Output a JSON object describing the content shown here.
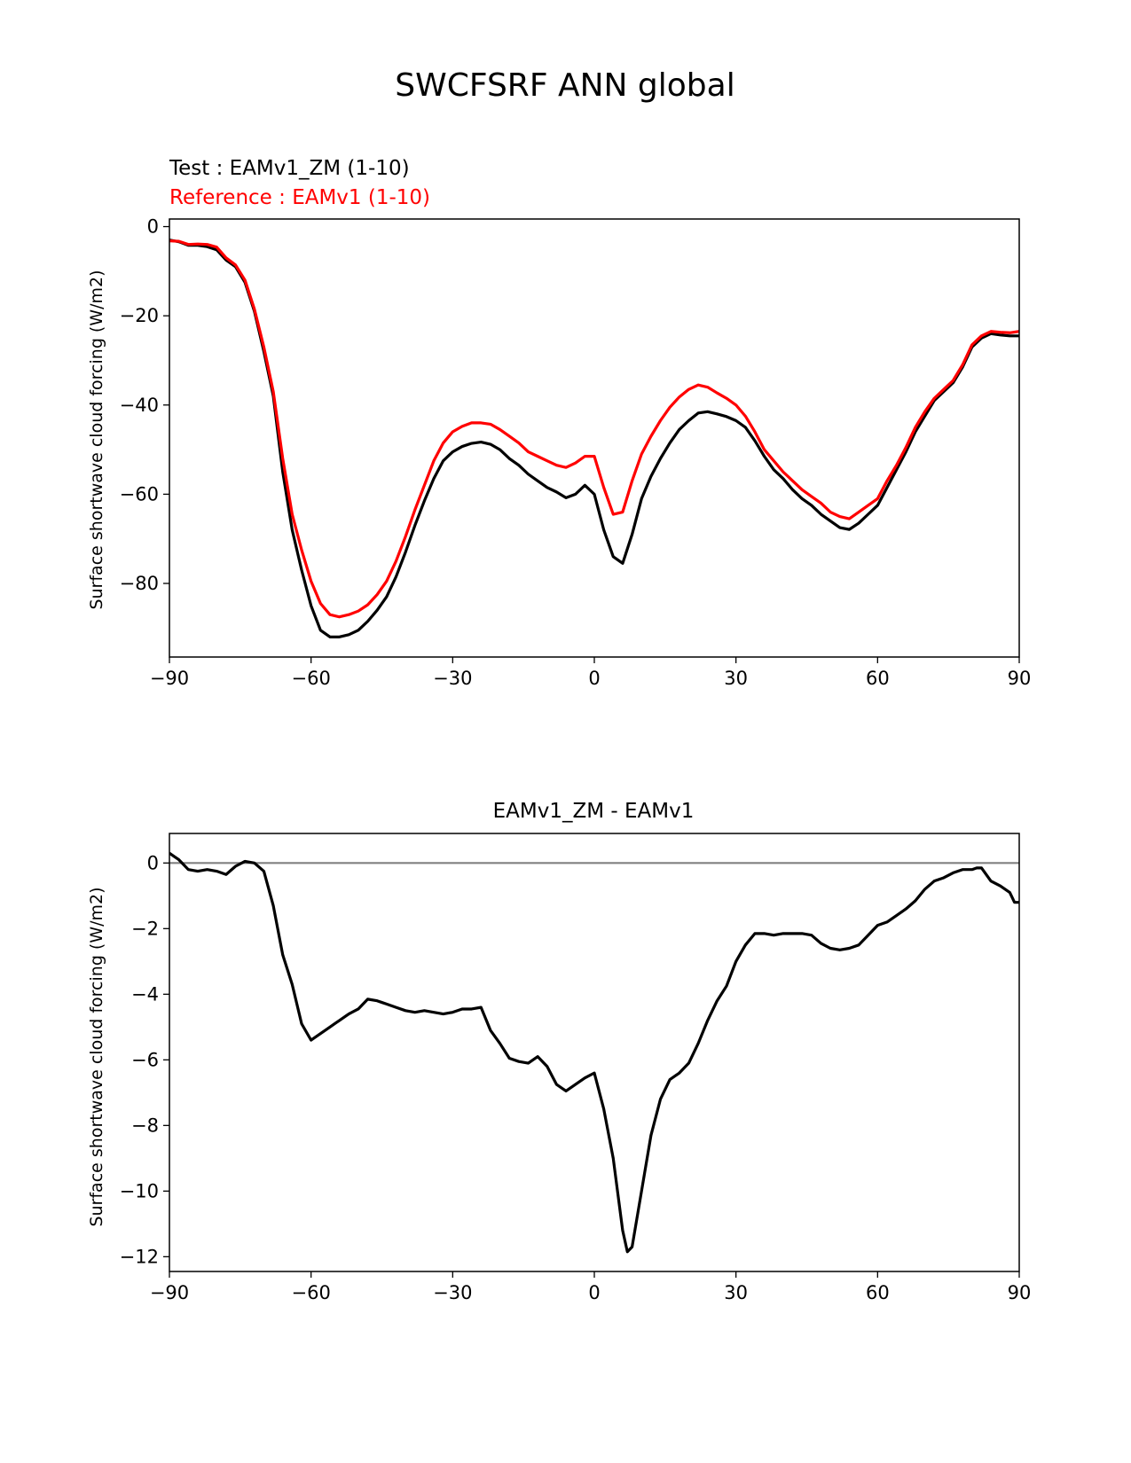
{
  "figure": {
    "title": "SWCFSRF ANN global"
  },
  "chart_data": [
    {
      "type": "line",
      "title_test": "Test : EAMv1_ZM (1-10)",
      "title_reference": "Reference : EAMv1 (1-10)",
      "xlabel": "",
      "ylabel": "Surface shortwave cloud forcing (W/m2)",
      "xlim": [
        -90,
        90
      ],
      "ylim": [
        -96.5,
        1.7
      ],
      "xticks": [
        -90,
        -60,
        -30,
        0,
        30,
        60,
        90
      ],
      "yticks": [
        0,
        -20,
        -40,
        -60,
        -80
      ],
      "xtick_labels": [
        "−90",
        "−60",
        "−30",
        "0",
        "30",
        "60",
        "90"
      ],
      "ytick_labels": [
        "0",
        "−20",
        "−40",
        "−60",
        "−80"
      ],
      "colors": {
        "test": "#000000",
        "reference": "#ff0000"
      },
      "x": [
        -90,
        -88,
        -86,
        -84,
        -82,
        -80,
        -78,
        -76,
        -74,
        -72,
        -70,
        -68,
        -66,
        -64,
        -62,
        -60,
        -58,
        -56,
        -54,
        -52,
        -50,
        -48,
        -46,
        -44,
        -42,
        -40,
        -38,
        -36,
        -34,
        -32,
        -30,
        -28,
        -26,
        -24,
        -22,
        -20,
        -18,
        -16,
        -14,
        -12,
        -10,
        -8,
        -6,
        -4,
        -2,
        0,
        2,
        4,
        6,
        8,
        10,
        12,
        14,
        16,
        18,
        20,
        22,
        24,
        26,
        28,
        30,
        32,
        34,
        36,
        38,
        40,
        42,
        44,
        46,
        48,
        50,
        52,
        54,
        56,
        58,
        60,
        62,
        64,
        66,
        68,
        70,
        72,
        74,
        76,
        78,
        80,
        82,
        84,
        86,
        88,
        90
      ],
      "series": [
        {
          "name": "Test : EAMv1_ZM (1-10)",
          "values": [
            -3.0,
            -3.4,
            -4.2,
            -4.2,
            -4.5,
            -5.2,
            -7.5,
            -9.0,
            -12.5,
            -19.0,
            -28.0,
            -38.0,
            -55.0,
            -68.0,
            -77.0,
            -85.0,
            -90.5,
            -92.0,
            -92.0,
            -91.5,
            -90.5,
            -88.5,
            -86.0,
            -83.0,
            -78.5,
            -73.0,
            -67.0,
            -61.5,
            -56.5,
            -52.5,
            -50.5,
            -49.3,
            -48.6,
            -48.3,
            -48.8,
            -50.0,
            -52.0,
            -53.5,
            -55.5,
            -57.0,
            -58.5,
            -59.5,
            -60.8,
            -60.0,
            -58.0,
            -60.0,
            -68.0,
            -74.0,
            -75.5,
            -69.0,
            -61.0,
            -56.0,
            -52.0,
            -48.5,
            -45.5,
            -43.5,
            -41.8,
            -41.5,
            -42.0,
            -42.6,
            -43.5,
            -45.0,
            -48.0,
            -51.5,
            -54.5,
            -56.5,
            -59.0,
            -61.0,
            -62.5,
            -64.5,
            -66.0,
            -67.5,
            -67.9,
            -66.5,
            -64.5,
            -62.5,
            -58.5,
            -54.5,
            -50.5,
            -46.0,
            -42.5,
            -39.0,
            -37.0,
            -35.0,
            -31.5,
            -27.0,
            -25.0,
            -24.0,
            -24.3,
            -24.5,
            -24.5
          ]
        },
        {
          "name": "Reference : EAMv1 (1-10)",
          "values": [
            -3.2,
            -3.3,
            -4.0,
            -3.9,
            -4.0,
            -4.6,
            -7.0,
            -8.6,
            -12.0,
            -18.5,
            -27.0,
            -37.0,
            -52.0,
            -64.5,
            -72.5,
            -79.5,
            -84.5,
            -87.0,
            -87.5,
            -87.0,
            -86.2,
            -84.8,
            -82.5,
            -79.5,
            -75.0,
            -69.5,
            -63.5,
            -58.0,
            -52.5,
            -48.5,
            -46.0,
            -44.8,
            -44.0,
            -44.0,
            -44.3,
            -45.5,
            -47.0,
            -48.5,
            -50.5,
            -51.5,
            -52.5,
            -53.5,
            -54.0,
            -53.0,
            -51.5,
            -51.5,
            -58.5,
            -64.5,
            -64.0,
            -57.0,
            -51.0,
            -47.0,
            -43.5,
            -40.5,
            -38.2,
            -36.5,
            -35.5,
            -36.0,
            -37.3,
            -38.5,
            -40.0,
            -42.5,
            -46.0,
            -50.0,
            -52.5,
            -55.0,
            -57.0,
            -59.0,
            -60.5,
            -62.0,
            -64.0,
            -65.0,
            -65.5,
            -64.0,
            -62.5,
            -61.0,
            -57.0,
            -53.5,
            -49.5,
            -45.0,
            -41.5,
            -38.5,
            -36.5,
            -34.5,
            -31.0,
            -26.5,
            -24.5,
            -23.5,
            -23.7,
            -23.8,
            -23.5
          ]
        }
      ]
    },
    {
      "type": "line",
      "title": "EAMv1_ZM - EAMv1",
      "xlabel": "",
      "ylabel": "Surface shortwave cloud forcing (W/m2)",
      "xlim": [
        -90,
        90
      ],
      "ylim": [
        -12.45,
        0.9
      ],
      "xticks": [
        -90,
        -60,
        -30,
        0,
        30,
        60,
        90
      ],
      "yticks": [
        0,
        -2,
        -4,
        -6,
        -8,
        -10,
        -12
      ],
      "xtick_labels": [
        "−90",
        "−60",
        "−30",
        "0",
        "30",
        "60",
        "90"
      ],
      "ytick_labels": [
        "0",
        "−2",
        "−4",
        "−6",
        "−8",
        "−10",
        "−12"
      ],
      "zero_line_color": "#808080",
      "line_color": "#000000",
      "x": [
        -90,
        -89,
        -88,
        -86,
        -84,
        -82,
        -80,
        -78,
        -76,
        -74,
        -72,
        -70,
        -68,
        -66,
        -64,
        -62,
        -60,
        -58,
        -56,
        -55,
        -54,
        -52,
        -50,
        -48,
        -46,
        -45,
        -44,
        -42,
        -40,
        -38,
        -36,
        -34,
        -32,
        -30,
        -28,
        -26,
        -24,
        -22,
        -20,
        -18,
        -16,
        -14,
        -12,
        -10,
        -8,
        -6,
        -4,
        -2,
        0,
        2,
        4,
        6,
        7,
        8,
        10,
        12,
        14,
        16,
        18,
        20,
        22,
        24,
        26,
        28,
        30,
        32,
        34,
        36,
        38,
        40,
        42,
        44,
        46,
        48,
        50,
        52,
        54,
        56,
        58,
        60,
        62,
        64,
        66,
        68,
        70,
        72,
        74,
        76,
        78,
        80,
        81,
        82,
        84,
        86,
        88,
        89,
        90
      ],
      "values": [
        0.3,
        0.2,
        0.1,
        -0.2,
        -0.25,
        -0.2,
        -0.25,
        -0.35,
        -0.1,
        0.05,
        0.0,
        -0.25,
        -1.3,
        -2.8,
        -3.7,
        -4.9,
        -5.4,
        -5.2,
        -5.0,
        -4.9,
        -4.8,
        -4.6,
        -4.45,
        -4.15,
        -4.2,
        -4.25,
        -4.3,
        -4.4,
        -4.5,
        -4.55,
        -4.5,
        -4.55,
        -4.6,
        -4.55,
        -4.45,
        -4.45,
        -4.4,
        -5.1,
        -5.5,
        -5.95,
        -6.05,
        -6.1,
        -5.9,
        -6.2,
        -6.75,
        -6.95,
        -6.75,
        -6.55,
        -6.4,
        -7.5,
        -9.0,
        -11.2,
        -11.85,
        -11.7,
        -10.0,
        -8.3,
        -7.2,
        -6.6,
        -6.4,
        -6.1,
        -5.5,
        -4.8,
        -4.2,
        -3.75,
        -3.0,
        -2.5,
        -2.15,
        -2.15,
        -2.2,
        -2.15,
        -2.15,
        -2.15,
        -2.2,
        -2.45,
        -2.6,
        -2.65,
        -2.6,
        -2.5,
        -2.2,
        -1.9,
        -1.8,
        -1.6,
        -1.4,
        -1.15,
        -0.8,
        -0.55,
        -0.45,
        -0.3,
        -0.2,
        -0.2,
        -0.15,
        -0.15,
        -0.55,
        -0.7,
        -0.9,
        -1.2,
        -1.2
      ]
    }
  ]
}
